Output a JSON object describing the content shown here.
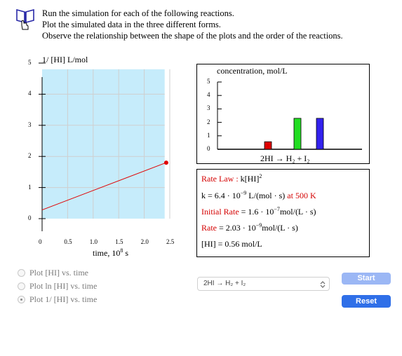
{
  "instructions": {
    "line1": "Run the simulation for each of the following reactions.",
    "line2": "Plot the simulated data in the three different forms.",
    "line3": "Observe the relationship between the shape of the plots and the order of the reactions."
  },
  "plot": {
    "ylabel": "1/ [HI] L/mol",
    "xlabel": "time, 10",
    "xlabel_exp": "8",
    "xlabel_unit": " s",
    "y_ticks": [
      "5",
      "4",
      "3",
      "2",
      "1",
      "0"
    ],
    "x_ticks": [
      "0",
      "0.5",
      "1.0",
      "1.5",
      "2.0",
      "2.5"
    ]
  },
  "chart_data": {
    "type": "line",
    "ylabel": "1/ [HI] L/mol",
    "xlabel": "time, 10^8 s",
    "xlim": [
      0,
      2.5
    ],
    "ylim": [
      0,
      5
    ],
    "shaded_region": {
      "x": [
        0,
        2.4
      ],
      "y": [
        0,
        4.8
      ]
    },
    "series": [
      {
        "x": [
          0,
          2.43
        ],
        "y": [
          0.28,
          1.8
        ]
      }
    ],
    "end_point": {
      "x": 2.43,
      "y": 1.8
    }
  },
  "bar_chart": {
    "title": "concentration, mol/L",
    "y_ticks": [
      "5",
      "4",
      "3",
      "2",
      "1",
      "0"
    ],
    "caption": "2HI → H₂ + I₂",
    "bars": [
      {
        "value": 0.56,
        "color": "#e00000"
      },
      {
        "value": 2.3,
        "color": "#22dd22"
      },
      {
        "value": 2.3,
        "color": "#3322ee"
      }
    ]
  },
  "rate_info": {
    "rate_law_label": "Rate Law :",
    "rate_law_value": "k[HI]",
    "rate_law_exp": "2",
    "k_label": "k = 6.4 · 10",
    "k_exp": "−9",
    "k_unit": " L/(mol · s)",
    "k_at": " at 500 K",
    "initial_rate_label": "Initial Rate",
    "initial_rate_value": " = 1.6 · 10",
    "initial_rate_exp": "−7",
    "initial_rate_unit": "mol/(L · s)",
    "rate_label": "Rate",
    "rate_value": " = 2.03 · 10",
    "rate_exp": "−9",
    "rate_unit": "mol/(L · s)",
    "hi_conc": "[HI] = 0.56 mol/L"
  },
  "options": [
    {
      "label": "Plot [HI] vs. time",
      "selected": false
    },
    {
      "label": "Plot ln [HI] vs. time",
      "selected": false
    },
    {
      "label": "Plot 1/ [HI] vs. time",
      "selected": true
    }
  ],
  "reaction_select": {
    "value": "2HI → H₂ + I₂"
  },
  "buttons": {
    "start": "Start",
    "reset": "Reset"
  },
  "colors": {
    "plot_fill": "#c6ecfb",
    "line": "#e00000",
    "start_btn": "#9bb7f5",
    "reset_btn": "#2f6fe8",
    "red_text": "#d40000"
  }
}
